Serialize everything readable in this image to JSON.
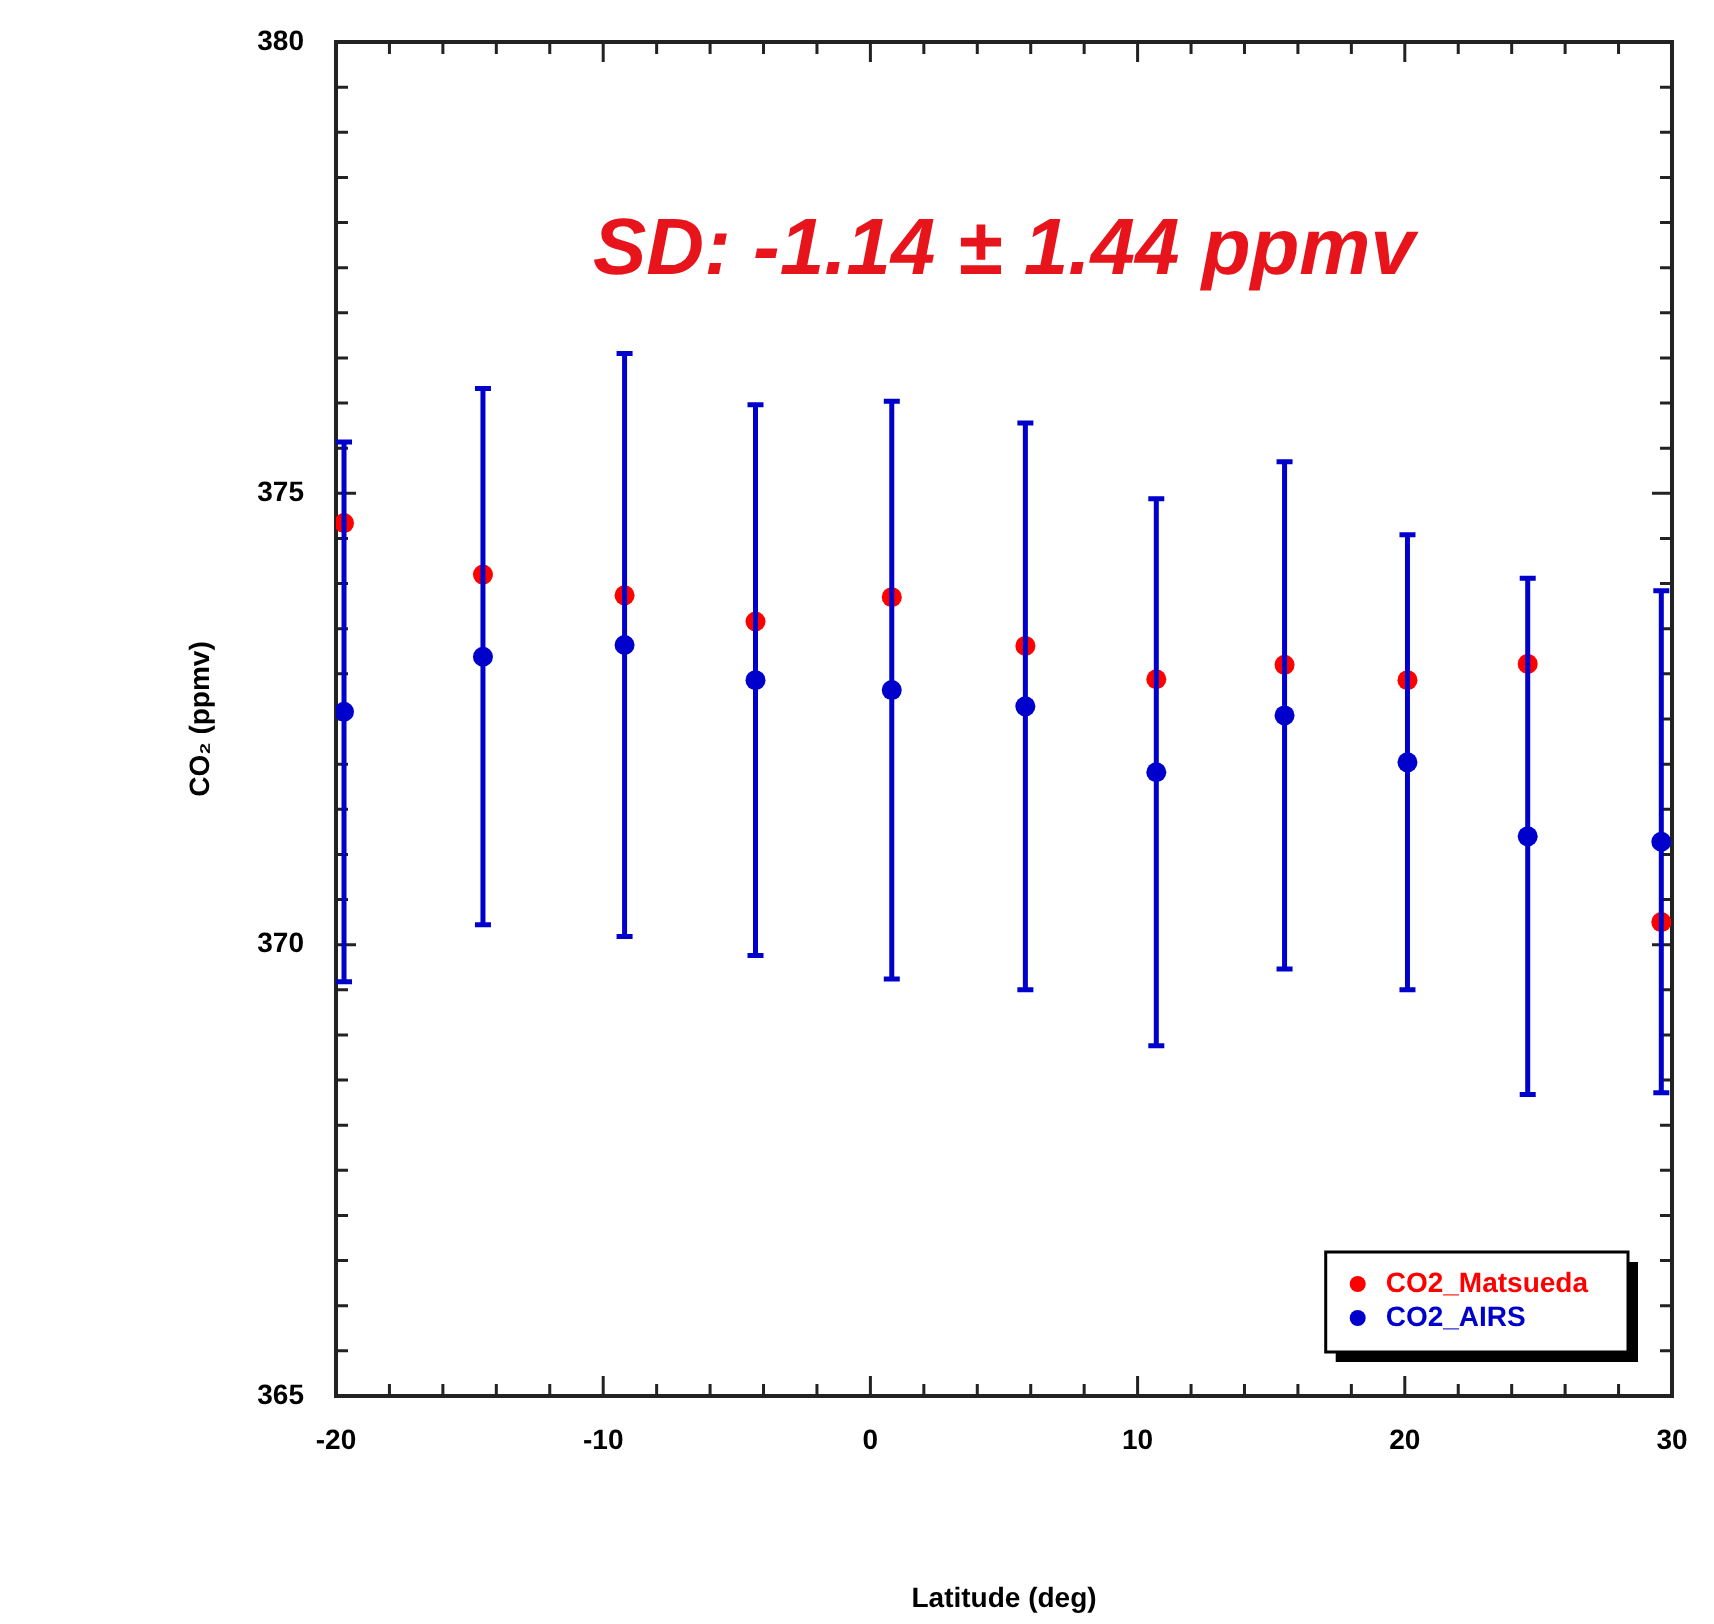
{
  "chart_data": {
    "type": "scatter",
    "xlabel": "Latitude (deg)",
    "ylabel": "CO₂ (ppmv)",
    "annotations": [
      "SD: -1.14 ± 1.44 ppmv"
    ],
    "x": [
      -19.7,
      -14.5,
      -9.2,
      -4.3,
      0.8,
      5.8,
      10.7,
      15.5,
      20.1,
      24.6,
      29.6
    ],
    "series": [
      {
        "name": "CO2_Matsueda",
        "color": "#ff0000",
        "values": [
          374.67,
          374.1,
          373.87,
          373.58,
          373.85,
          373.31,
          372.94,
          373.1,
          372.93,
          373.11,
          370.25
        ]
      },
      {
        "name": "CO2_AIRS",
        "color": "#0000cc",
        "values": [
          372.58,
          373.19,
          373.32,
          372.93,
          372.82,
          372.64,
          371.91,
          372.54,
          372.02,
          371.2,
          371.14
        ],
        "errors": [
          2.99,
          2.97,
          3.23,
          3.05,
          3.2,
          3.14,
          3.03,
          2.81,
          2.52,
          2.86,
          2.78
        ]
      }
    ],
    "xlim": [
      -20,
      30
    ],
    "xticks": [
      -20,
      {
        "value": -18,
        "label": null
      },
      {
        "value": -16,
        "label": null
      },
      {
        "value": -14,
        "label": null
      },
      {
        "value": -12,
        "label": null
      },
      -10,
      {
        "value": -8,
        "label": null
      },
      {
        "value": -6,
        "label": null
      },
      {
        "value": -4,
        "label": null
      },
      {
        "value": -2,
        "label": null
      },
      0,
      {
        "value": 2,
        "label": null
      },
      {
        "value": 4,
        "label": null
      },
      {
        "value": 6,
        "label": null
      },
      {
        "value": 8,
        "label": null
      },
      10,
      {
        "value": 12,
        "label": null
      },
      {
        "value": 14,
        "label": null
      },
      {
        "value": 16,
        "label": null
      },
      {
        "value": 18,
        "label": null
      },
      20,
      {
        "value": 22,
        "label": null
      },
      {
        "value": 24,
        "label": null
      },
      {
        "value": 26,
        "label": null
      },
      {
        "value": 28,
        "label": null
      },
      30
    ],
    "ylim": [
      365,
      380
    ],
    "yticks": [
      365,
      {
        "value": 365.5,
        "label": null
      },
      {
        "value": 366,
        "label": null
      },
      {
        "value": 366.5,
        "label": null
      },
      {
        "value": 367,
        "label": null
      },
      {
        "value": 367.5,
        "label": null
      },
      {
        "value": 368,
        "label": null
      },
      {
        "value": 368.5,
        "label": null
      },
      {
        "value": 369,
        "label": null
      },
      {
        "value": 369.5,
        "label": null
      },
      370,
      {
        "value": 370.5,
        "label": null
      },
      {
        "value": 371,
        "label": null
      },
      {
        "value": 371.5,
        "label": null
      },
      {
        "value": 372,
        "label": null
      },
      {
        "value": 372.5,
        "label": null
      },
      {
        "value": 373,
        "label": null
      },
      {
        "value": 373.5,
        "label": null
      },
      {
        "value": 374,
        "label": null
      },
      {
        "value": 374.5,
        "label": null
      },
      375,
      {
        "value": 375.5,
        "label": null
      },
      {
        "value": 376,
        "label": null
      },
      {
        "value": 376.5,
        "label": null
      },
      {
        "value": 377,
        "label": null
      },
      {
        "value": 377.5,
        "label": null
      },
      {
        "value": 378,
        "label": null
      },
      {
        "value": 378.5,
        "label": null
      },
      {
        "value": 379,
        "label": null
      },
      {
        "value": 379.5,
        "label": null
      },
      380
    ],
    "grid": false,
    "legend": "bottom right",
    "marker": "circle"
  }
}
